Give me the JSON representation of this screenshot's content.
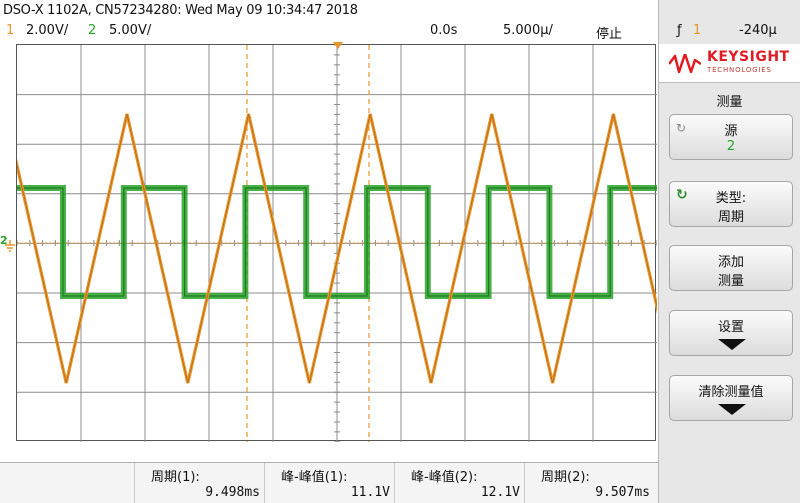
{
  "header": {
    "title": "DSO-X 1102A, CN57234280: Wed May 09 10:34:47 2018",
    "ch1_num": "1",
    "ch1_scale": "2.00V/",
    "ch2_num": "2",
    "ch2_scale": "5.00V/",
    "time_offset": "0.0s",
    "timebase": "5.000µ/",
    "run_state": "停止",
    "trigger_source": "1",
    "trigger_level": "-240µ"
  },
  "brand": {
    "name": "KEYSIGHT",
    "sub": "TECHNOLOGIES"
  },
  "menu": {
    "title": "测量",
    "source_label": "源",
    "source_value": "2",
    "type_label": "类型:",
    "type_value": "周期",
    "add_line1": "添加",
    "add_line2": "测量",
    "settings_label": "设置",
    "clear_label": "清除测量值"
  },
  "measurements": [
    {
      "label": "周期(1):",
      "value": "9.498ms"
    },
    {
      "label": "峰-峰值(1):",
      "value": "11.1V"
    },
    {
      "label": "峰-峰值(2):",
      "value": "12.1V"
    },
    {
      "label": "周期(2):",
      "value": "9.507ms"
    }
  ],
  "markers": {
    "ground": "2",
    "ground2": "1"
  },
  "colors": {
    "ch1": "#e8952a",
    "ch2": "#29a329",
    "cursor": "#e8952a",
    "grid": "#8c8c8c"
  }
}
